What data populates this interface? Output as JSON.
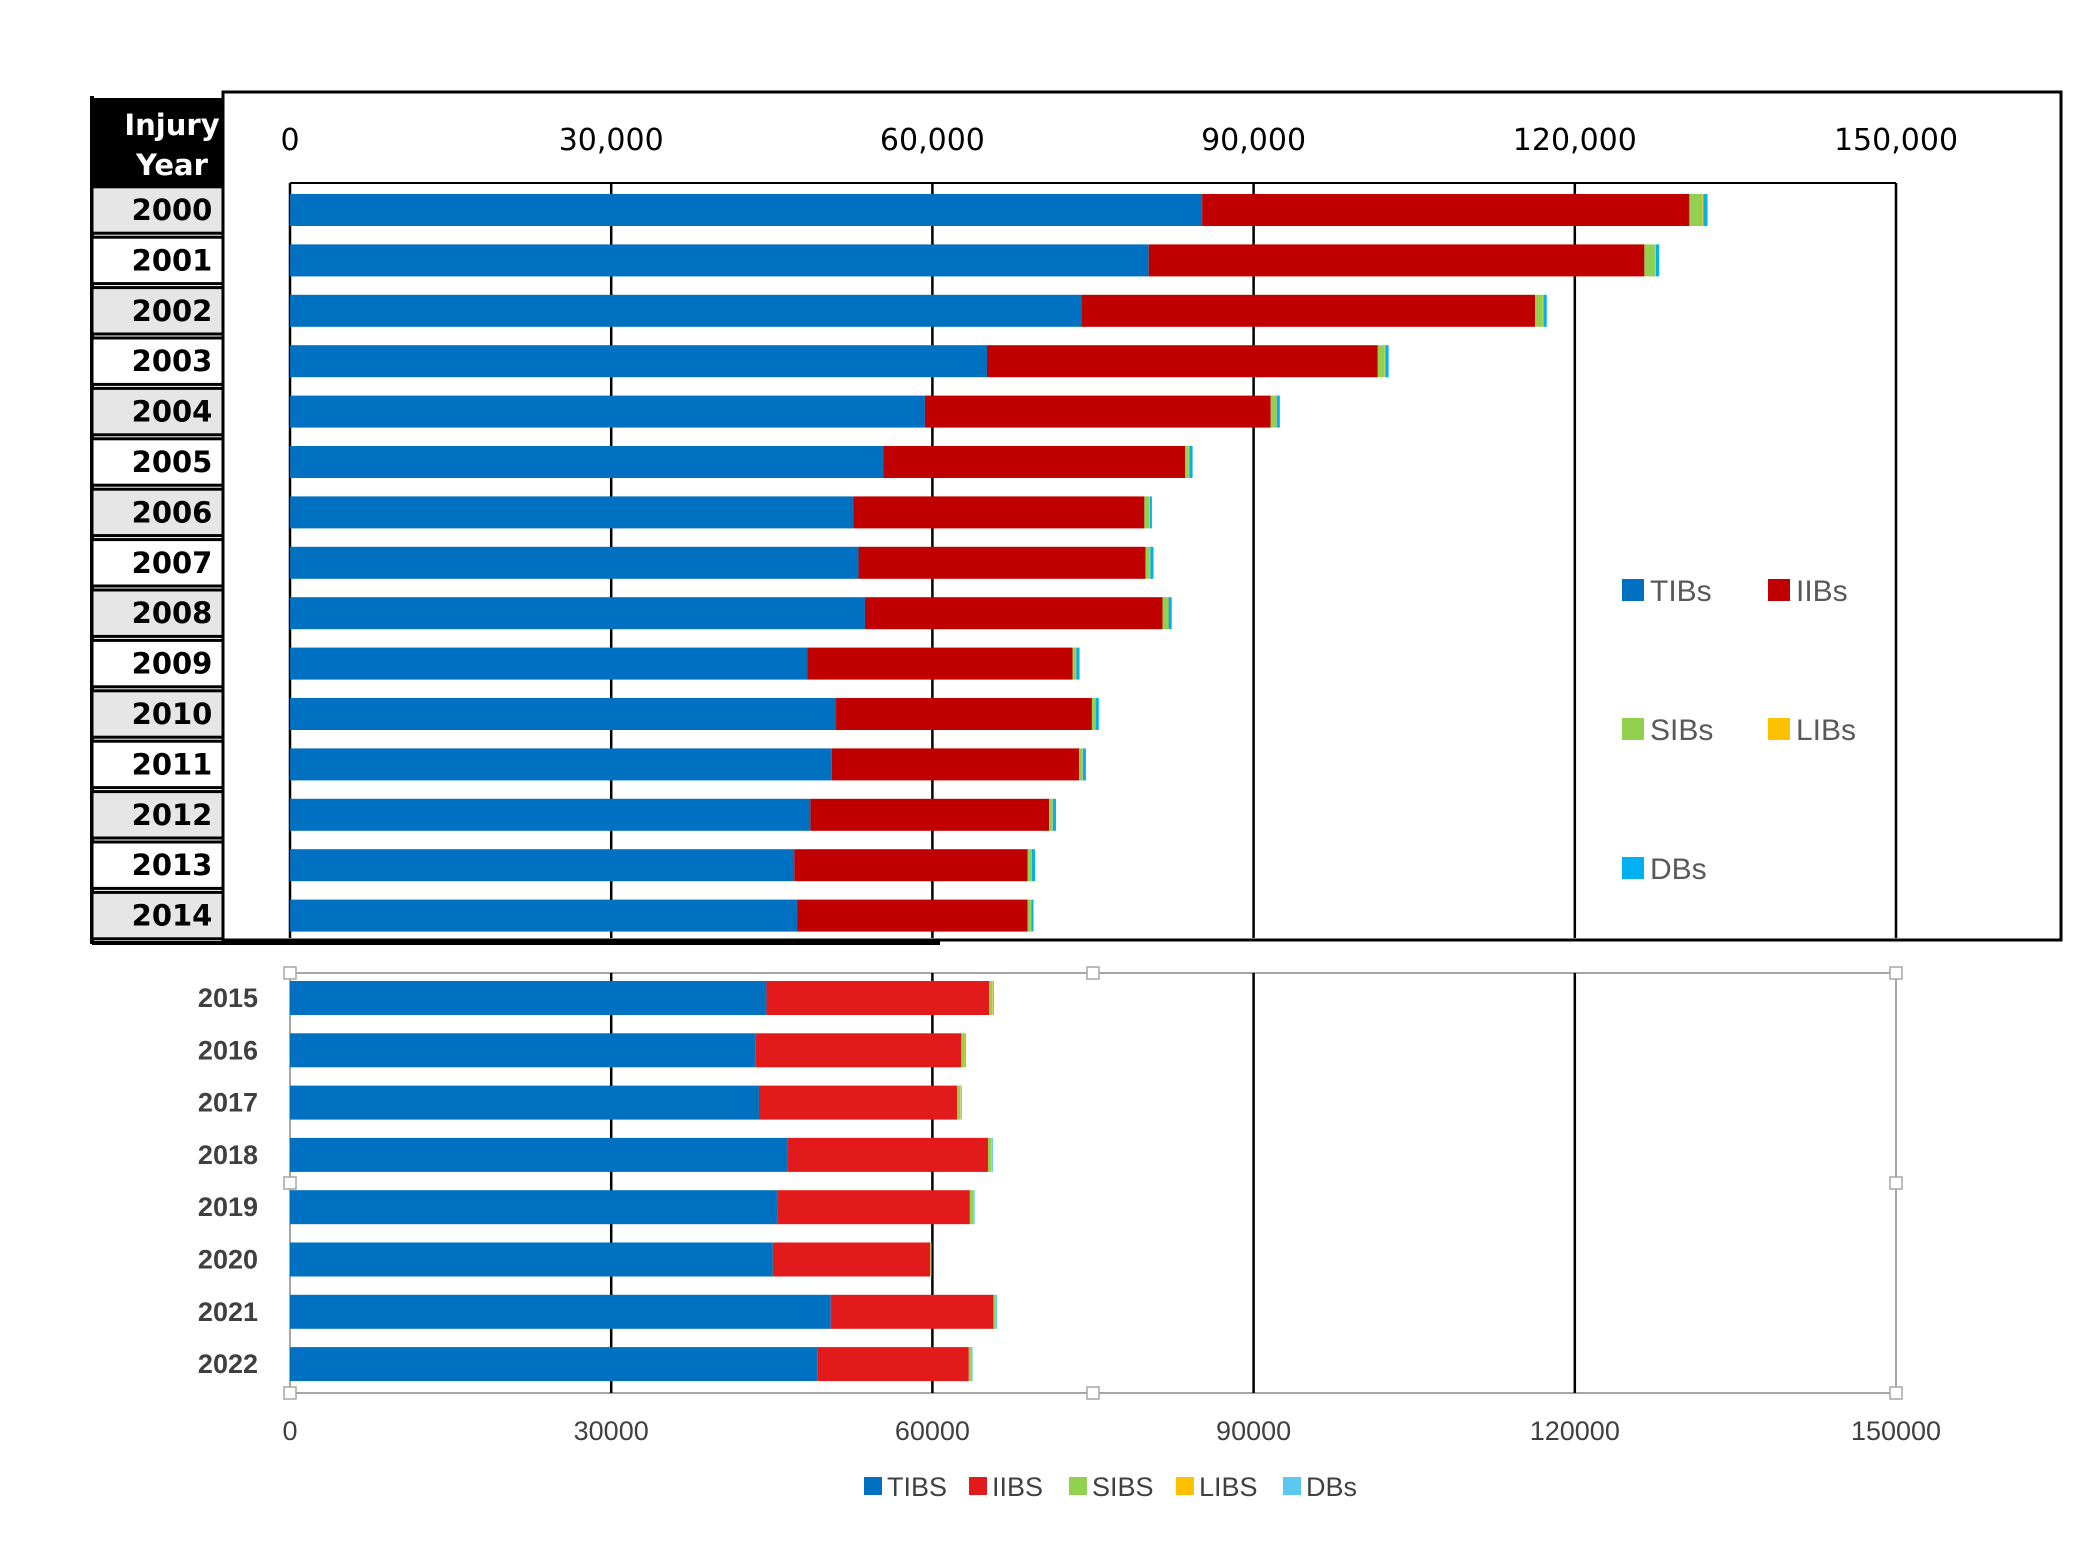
{
  "colors": {
    "top": {
      "TIBs": "#0070C0",
      "IIBs": "#C00000",
      "SIBs": "#92D050",
      "LIBs": "#FFC000",
      "DBs": "#00B0F0"
    },
    "bottom": {
      "TIBS": "#0070C0",
      "IIBS": "#E31A1C",
      "SIBS": "#92D050",
      "LIBS": "#FFC000",
      "DBs": "#5BC8F0"
    }
  },
  "chart_data": [
    {
      "type": "bar",
      "orientation": "horizontal",
      "stacked": true,
      "header": [
        "Injury",
        "Year"
      ],
      "categories": [
        "2000",
        "2001",
        "2002",
        "2003",
        "2004",
        "2005",
        "2006",
        "2007",
        "2008",
        "2009",
        "2010",
        "2011",
        "2012",
        "2013",
        "2014"
      ],
      "series": [
        {
          "name": "TIBs",
          "values": [
            85200,
            80200,
            73900,
            65100,
            59300,
            55400,
            52600,
            53100,
            53700,
            48300,
            51000,
            50600,
            48600,
            47100,
            47400
          ]
        },
        {
          "name": "IIBs",
          "values": [
            45500,
            46300,
            42400,
            36500,
            32300,
            28200,
            27200,
            26800,
            27800,
            24800,
            23900,
            23100,
            22300,
            21800,
            21500
          ]
        },
        {
          "name": "SIBs",
          "values": [
            1200,
            1000,
            700,
            650,
            500,
            350,
            450,
            400,
            500,
            300,
            300,
            300,
            300,
            350,
            300
          ]
        },
        {
          "name": "LIBs",
          "values": [
            100,
            80,
            80,
            60,
            50,
            50,
            50,
            50,
            50,
            40,
            40,
            40,
            40,
            40,
            40
          ]
        },
        {
          "name": "DBs",
          "values": [
            400,
            300,
            300,
            300,
            300,
            300,
            200,
            300,
            300,
            300,
            300,
            300,
            300,
            300,
            200
          ]
        }
      ],
      "xlim": [
        0,
        150000
      ],
      "xticks": [
        "0",
        "30,000",
        "60,000",
        "90,000",
        "120,000",
        "150,000"
      ],
      "legend_position": "right"
    },
    {
      "type": "bar",
      "orientation": "horizontal",
      "stacked": true,
      "categories": [
        "2015",
        "2016",
        "2017",
        "2018",
        "2019",
        "2020",
        "2021",
        "2022"
      ],
      "series": [
        {
          "name": "TIBS",
          "values": [
            44500,
            43500,
            43800,
            46500,
            45500,
            45100,
            50500,
            49300
          ]
        },
        {
          "name": "IIBS",
          "values": [
            20800,
            19200,
            18500,
            18700,
            18000,
            14700,
            15200,
            14100
          ]
        },
        {
          "name": "SIBS",
          "values": [
            300,
            300,
            300,
            300,
            300,
            50,
            200,
            200
          ]
        },
        {
          "name": "LIBS",
          "values": [
            50,
            50,
            50,
            50,
            50,
            20,
            50,
            50
          ]
        },
        {
          "name": "DBs",
          "values": [
            100,
            100,
            100,
            100,
            100,
            50,
            100,
            100
          ]
        }
      ],
      "xlim": [
        0,
        150000
      ],
      "xticks": [
        "0",
        "30000",
        "60000",
        "90000",
        "120000",
        "150000"
      ],
      "legend_position": "bottom"
    }
  ]
}
